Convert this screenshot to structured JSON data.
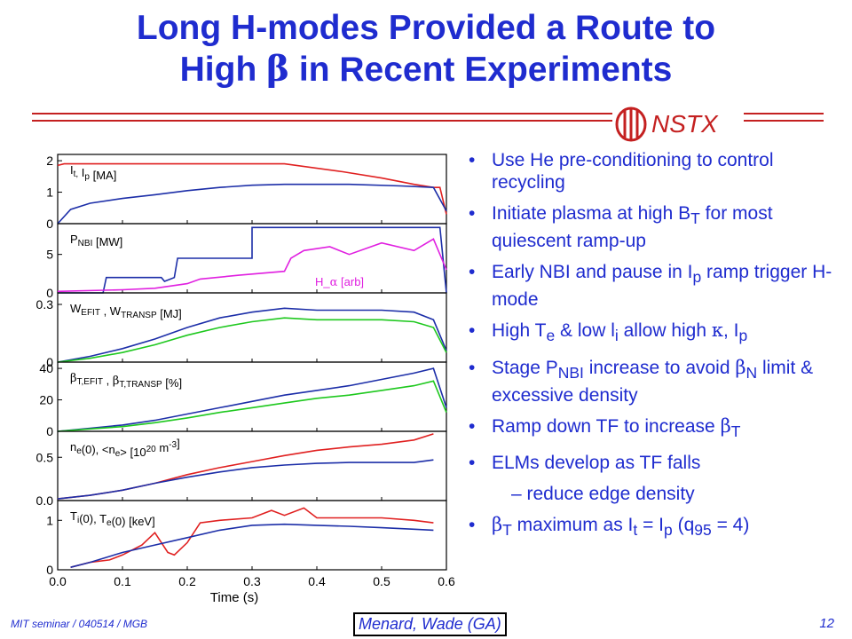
{
  "slide": {
    "title_line1": "Long H-modes Provided a Route to",
    "title_line2_pre": "High ",
    "title_line2_sym": "β",
    "title_line2_post": " in Recent Experiments",
    "logo_text": "NSTX",
    "footer_left": "MIT seminar / 040514 / MGB",
    "footer_author": "Menard, Wade (GA)",
    "page_number": "12"
  },
  "bullets": [
    {
      "type": "bullet",
      "text": "Use He pre-conditioning to control recycling"
    },
    {
      "type": "bullet",
      "text": "Initiate plasma at high B_T for most quiescent ramp-up"
    },
    {
      "type": "bullet",
      "text": "Early NBI and pause in I_p ramp trigger H-mode"
    },
    {
      "type": "bullet",
      "text": "High T_e & low l_i allow high κ, I_p"
    },
    {
      "type": "bullet",
      "text": "Stage P_NBI increase to avoid β_N limit & excessive density"
    },
    {
      "type": "bullet",
      "text": "Ramp down TF to increase β_T"
    },
    {
      "type": "bullet",
      "text": "ELMs develop as TF falls"
    },
    {
      "type": "sub",
      "text": "– reduce edge density"
    },
    {
      "type": "bullet",
      "text": " β_T maximum as I_t = I_p (q_95 = 4)"
    }
  ],
  "chart_data": {
    "type": "line",
    "xlabel": "Time (s)",
    "x_ticks": [
      "0.0",
      "0.1",
      "0.2",
      "0.3",
      "0.4",
      "0.5",
      "0.6"
    ],
    "xlim": [
      0,
      0.6
    ],
    "panels": [
      {
        "label": "I_t, I_p [MA]",
        "ylim": [
          0,
          2.2
        ],
        "y_ticks": [
          {
            "v": 0,
            "t": "0"
          },
          {
            "v": 1,
            "t": "1"
          },
          {
            "v": 2,
            "t": "2"
          }
        ],
        "series": [
          {
            "color": "#e02020",
            "x": [
              0,
              0.01,
              0.35,
              0.44,
              0.5,
              0.55,
              0.58,
              0.59,
              0.6
            ],
            "y": [
              1.85,
              1.9,
              1.9,
              1.65,
              1.45,
              1.25,
              1.15,
              1.15,
              0.3
            ]
          },
          {
            "color": "#1c2ea8",
            "x": [
              0,
              0.02,
              0.05,
              0.1,
              0.15,
              0.2,
              0.25,
              0.3,
              0.35,
              0.45,
              0.53,
              0.58,
              0.6
            ],
            "y": [
              0,
              0.45,
              0.65,
              0.8,
              0.92,
              1.05,
              1.15,
              1.22,
              1.25,
              1.25,
              1.2,
              1.15,
              0.4
            ]
          }
        ]
      },
      {
        "label": "P_NBI [MW]",
        "label2": "H_α [arb]",
        "ylim": [
          0,
          9
        ],
        "y_ticks": [
          {
            "v": 0,
            "t": "0"
          },
          {
            "v": 5,
            "t": "5"
          }
        ],
        "series": [
          {
            "color": "#1c2ea8",
            "x": [
              0,
              0.07,
              0.075,
              0.16,
              0.165,
              0.18,
              0.185,
              0.3,
              0.3,
              0.585,
              0.59,
              0.6
            ],
            "y": [
              0,
              0,
              2,
              2,
              1.5,
              2,
              4.5,
              4.5,
              8.5,
              8.5,
              8.5,
              0
            ]
          },
          {
            "color": "#e020e0",
            "x": [
              0,
              0.1,
              0.15,
              0.2,
              0.22,
              0.28,
              0.35,
              0.36,
              0.38,
              0.42,
              0.45,
              0.5,
              0.55,
              0.58,
              0.6
            ],
            "y": [
              0.2,
              0.4,
              0.6,
              1.2,
              1.8,
              2.3,
              2.8,
              4.5,
              5.5,
              6,
              5,
              6.5,
              5.5,
              7,
              3
            ]
          }
        ]
      },
      {
        "label": "W_EFIT , W_TRANSP [MJ]",
        "ylim": [
          0,
          0.36
        ],
        "y_ticks": [
          {
            "v": 0,
            "t": "0"
          },
          {
            "v": 0.3,
            "t": "0.3"
          }
        ],
        "series": [
          {
            "color": "#1c2ea8",
            "x": [
              0,
              0.05,
              0.1,
              0.15,
              0.2,
              0.25,
              0.3,
              0.35,
              0.4,
              0.45,
              0.5,
              0.55,
              0.58,
              0.6
            ],
            "y": [
              0,
              0.03,
              0.07,
              0.12,
              0.18,
              0.23,
              0.26,
              0.28,
              0.27,
              0.27,
              0.27,
              0.26,
              0.22,
              0.06
            ]
          },
          {
            "color": "#1ec81e",
            "x": [
              0,
              0.05,
              0.1,
              0.15,
              0.2,
              0.25,
              0.3,
              0.35,
              0.4,
              0.45,
              0.5,
              0.55,
              0.58,
              0.6
            ],
            "y": [
              0,
              0.02,
              0.05,
              0.09,
              0.14,
              0.18,
              0.21,
              0.23,
              0.22,
              0.22,
              0.22,
              0.21,
              0.18,
              0.05
            ]
          }
        ]
      },
      {
        "label": "β_T,EFIT , β_T,TRANSP [%]",
        "ylim": [
          0,
          44
        ],
        "y_ticks": [
          {
            "v": 0,
            "t": "0"
          },
          {
            "v": 20,
            "t": "20"
          },
          {
            "v": 40,
            "t": "40"
          }
        ],
        "series": [
          {
            "color": "#1c2ea8",
            "x": [
              0,
              0.05,
              0.1,
              0.15,
              0.2,
              0.25,
              0.3,
              0.35,
              0.4,
              0.45,
              0.5,
              0.55,
              0.58,
              0.6
            ],
            "y": [
              0,
              2,
              4,
              7,
              11,
              15,
              19,
              23,
              26,
              29,
              33,
              37,
              40,
              15
            ]
          },
          {
            "color": "#1ec81e",
            "x": [
              0,
              0.05,
              0.1,
              0.15,
              0.2,
              0.25,
              0.3,
              0.35,
              0.4,
              0.45,
              0.5,
              0.55,
              0.58,
              0.6
            ],
            "y": [
              0,
              1.5,
              3,
              5.5,
              8.5,
              12,
              15,
              18,
              21,
              23,
              26,
              29,
              32,
              12
            ]
          }
        ]
      },
      {
        "label": "n_e(0), <n_e> [10^20 m^-3]",
        "ylim": [
          0,
          0.8
        ],
        "y_ticks": [
          {
            "v": 0,
            "t": "0.0"
          },
          {
            "v": 0.5,
            "t": "0.5"
          }
        ],
        "series": [
          {
            "color": "#e02020",
            "x": [
              0,
              0.05,
              0.1,
              0.15,
              0.2,
              0.25,
              0.3,
              0.35,
              0.4,
              0.45,
              0.5,
              0.55,
              0.58
            ],
            "y": [
              0.02,
              0.06,
              0.12,
              0.2,
              0.3,
              0.38,
              0.45,
              0.52,
              0.58,
              0.62,
              0.65,
              0.7,
              0.77
            ]
          },
          {
            "color": "#1c2ea8",
            "x": [
              0,
              0.05,
              0.1,
              0.15,
              0.2,
              0.25,
              0.3,
              0.35,
              0.4,
              0.45,
              0.5,
              0.55,
              0.58
            ],
            "y": [
              0.02,
              0.06,
              0.12,
              0.2,
              0.27,
              0.33,
              0.38,
              0.41,
              0.43,
              0.44,
              0.44,
              0.44,
              0.47
            ]
          }
        ]
      },
      {
        "label": "T_i(0), T_e(0) [keV]",
        "ylim": [
          0,
          1.4
        ],
        "y_ticks": [
          {
            "v": 0,
            "t": "0"
          },
          {
            "v": 1,
            "t": "1"
          }
        ],
        "series": [
          {
            "color": "#e02020",
            "x": [
              0.02,
              0.05,
              0.08,
              0.1,
              0.13,
              0.15,
              0.17,
              0.18,
              0.2,
              0.22,
              0.25,
              0.3,
              0.33,
              0.35,
              0.38,
              0.4,
              0.45,
              0.5,
              0.55,
              0.58
            ],
            "y": [
              0.05,
              0.15,
              0.2,
              0.3,
              0.5,
              0.75,
              0.35,
              0.3,
              0.55,
              0.95,
              1.0,
              1.05,
              1.2,
              1.1,
              1.25,
              1.05,
              1.05,
              1.05,
              1.0,
              0.95
            ]
          },
          {
            "color": "#1c2ea8",
            "x": [
              0.02,
              0.05,
              0.1,
              0.15,
              0.2,
              0.25,
              0.3,
              0.35,
              0.4,
              0.45,
              0.5,
              0.55,
              0.58
            ],
            "y": [
              0.05,
              0.15,
              0.35,
              0.5,
              0.65,
              0.8,
              0.9,
              0.92,
              0.9,
              0.88,
              0.85,
              0.82,
              0.8
            ]
          }
        ]
      }
    ]
  }
}
